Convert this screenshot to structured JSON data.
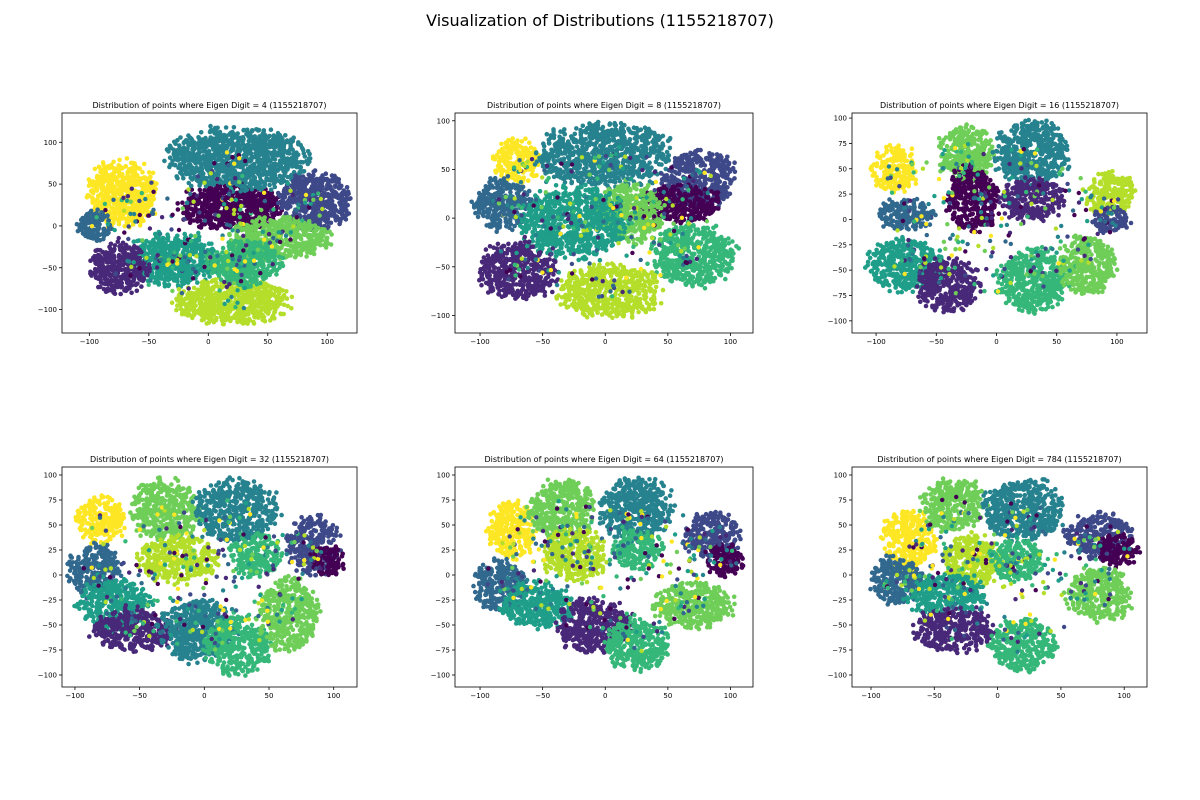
{
  "figure": {
    "suptitle": "Visualization of Distributions (1155218707)"
  },
  "palette": [
    "#440154",
    "#482878",
    "#3e4989",
    "#31688e",
    "#26828e",
    "#1f9e89",
    "#35b779",
    "#6ece58",
    "#b5de2b",
    "#fde725"
  ],
  "chart_data": [
    {
      "type": "scatter",
      "title": "Distribution of points where Eigen Digit = 4 (1155218707)",
      "xlim": [
        -123,
        125
      ],
      "ylim": [
        -128,
        135
      ],
      "xticks": [
        -100,
        -50,
        0,
        50,
        100
      ],
      "yticks": [
        -100,
        -50,
        0,
        50,
        100
      ],
      "grid": false,
      "clusters": [
        {
          "c": 9,
          "x": -72,
          "y": 38,
          "rx": 28,
          "ry": 38
        },
        {
          "c": 0,
          "x": 20,
          "y": 22,
          "rx": 42,
          "ry": 26
        },
        {
          "c": 4,
          "x": 25,
          "y": 80,
          "rx": 55,
          "ry": 35
        },
        {
          "c": 2,
          "x": 90,
          "y": 30,
          "rx": 28,
          "ry": 32
        },
        {
          "c": 7,
          "x": 60,
          "y": -15,
          "rx": 40,
          "ry": 24
        },
        {
          "c": 5,
          "x": -30,
          "y": -40,
          "rx": 35,
          "ry": 30
        },
        {
          "c": 1,
          "x": -75,
          "y": -50,
          "rx": 24,
          "ry": 28
        },
        {
          "c": 8,
          "x": 20,
          "y": -90,
          "rx": 45,
          "ry": 26
        },
        {
          "c": 3,
          "x": -95,
          "y": 0,
          "rx": 14,
          "ry": 18
        },
        {
          "c": 6,
          "x": 30,
          "y": -45,
          "rx": 30,
          "ry": 25
        }
      ]
    },
    {
      "type": "scatter",
      "title": "Distribution of points where Eigen Digit = 8 (1155218707)",
      "xlim": [
        -120,
        118
      ],
      "ylim": [
        -118,
        108
      ],
      "xticks": [
        -100,
        -50,
        0,
        50,
        100
      ],
      "yticks": [
        -100,
        -50,
        0,
        50,
        100
      ],
      "grid": false,
      "clusters": [
        {
          "c": 9,
          "x": -72,
          "y": 58,
          "rx": 18,
          "ry": 22
        },
        {
          "c": 3,
          "x": -82,
          "y": 15,
          "rx": 22,
          "ry": 25
        },
        {
          "c": 4,
          "x": 0,
          "y": 65,
          "rx": 50,
          "ry": 32
        },
        {
          "c": 2,
          "x": 75,
          "y": 40,
          "rx": 28,
          "ry": 28
        },
        {
          "c": 0,
          "x": 60,
          "y": 15,
          "rx": 30,
          "ry": 18
        },
        {
          "c": 7,
          "x": 20,
          "y": 5,
          "rx": 25,
          "ry": 30
        },
        {
          "c": 5,
          "x": -25,
          "y": -5,
          "rx": 40,
          "ry": 35
        },
        {
          "c": 6,
          "x": 70,
          "y": -38,
          "rx": 32,
          "ry": 30
        },
        {
          "c": 1,
          "x": -70,
          "y": -55,
          "rx": 30,
          "ry": 28
        },
        {
          "c": 8,
          "x": 5,
          "y": -75,
          "rx": 40,
          "ry": 26
        }
      ]
    },
    {
      "type": "scatter",
      "title": "Distribution of points where Eigen Digit = 16 (1155218707)",
      "xlim": [
        -120,
        125
      ],
      "ylim": [
        -112,
        105
      ],
      "xticks": [
        -100,
        -50,
        0,
        50,
        100
      ],
      "yticks": [
        -100,
        -75,
        -50,
        -25,
        0,
        25,
        50,
        75,
        100
      ],
      "grid": false,
      "clusters": [
        {
          "c": 9,
          "x": -85,
          "y": 50,
          "rx": 18,
          "ry": 22
        },
        {
          "c": 3,
          "x": -75,
          "y": 5,
          "rx": 22,
          "ry": 15
        },
        {
          "c": 7,
          "x": -25,
          "y": 65,
          "rx": 22,
          "ry": 26
        },
        {
          "c": 4,
          "x": 30,
          "y": 65,
          "rx": 30,
          "ry": 30
        },
        {
          "c": 0,
          "x": -20,
          "y": 20,
          "rx": 22,
          "ry": 30
        },
        {
          "c": 1,
          "x": 30,
          "y": 20,
          "rx": 25,
          "ry": 20
        },
        {
          "c": 8,
          "x": 95,
          "y": 25,
          "rx": 20,
          "ry": 20
        },
        {
          "c": 2,
          "x": 95,
          "y": 0,
          "rx": 15,
          "ry": 12
        },
        {
          "c": 5,
          "x": -75,
          "y": -45,
          "rx": 30,
          "ry": 25
        },
        {
          "c": 1,
          "x": -40,
          "y": -65,
          "rx": 25,
          "ry": 25
        },
        {
          "c": 6,
          "x": 30,
          "y": -60,
          "rx": 28,
          "ry": 30
        },
        {
          "c": 7,
          "x": 75,
          "y": -45,
          "rx": 22,
          "ry": 28
        }
      ]
    },
    {
      "type": "scatter",
      "title": "Distribution of points where Eigen Digit = 32 (1155218707)",
      "xlim": [
        -110,
        118
      ],
      "ylim": [
        -112,
        108
      ],
      "xticks": [
        -100,
        -50,
        0,
        50,
        100
      ],
      "yticks": [
        -100,
        -75,
        -50,
        -25,
        0,
        25,
        50,
        75,
        100
      ],
      "grid": false,
      "clusters": [
        {
          "c": 9,
          "x": -80,
          "y": 55,
          "rx": 18,
          "ry": 22
        },
        {
          "c": 3,
          "x": -85,
          "y": 5,
          "rx": 20,
          "ry": 25
        },
        {
          "c": 7,
          "x": -30,
          "y": 65,
          "rx": 25,
          "ry": 30
        },
        {
          "c": 4,
          "x": 25,
          "y": 65,
          "rx": 30,
          "ry": 30
        },
        {
          "c": 8,
          "x": -20,
          "y": 15,
          "rx": 30,
          "ry": 22
        },
        {
          "c": 2,
          "x": 85,
          "y": 30,
          "rx": 20,
          "ry": 28
        },
        {
          "c": 0,
          "x": 95,
          "y": 15,
          "rx": 12,
          "ry": 16
        },
        {
          "c": 5,
          "x": -70,
          "y": -30,
          "rx": 28,
          "ry": 25
        },
        {
          "c": 1,
          "x": -55,
          "y": -55,
          "rx": 30,
          "ry": 20
        },
        {
          "c": 4,
          "x": -5,
          "y": -55,
          "rx": 28,
          "ry": 30
        },
        {
          "c": 6,
          "x": 25,
          "y": -70,
          "rx": 25,
          "ry": 28
        },
        {
          "c": 7,
          "x": 65,
          "y": -40,
          "rx": 22,
          "ry": 35
        },
        {
          "c": 6,
          "x": 40,
          "y": 20,
          "rx": 20,
          "ry": 20
        }
      ]
    },
    {
      "type": "scatter",
      "title": "Distribution of points where Eigen Digit = 64 (1155218707)",
      "xlim": [
        -120,
        118
      ],
      "ylim": [
        -112,
        108
      ],
      "xticks": [
        -100,
        -50,
        0,
        50,
        100
      ],
      "yticks": [
        -100,
        -75,
        -50,
        -25,
        0,
        25,
        50,
        75,
        100
      ],
      "grid": false,
      "clusters": [
        {
          "c": 9,
          "x": -75,
          "y": 45,
          "rx": 18,
          "ry": 28
        },
        {
          "c": 3,
          "x": -85,
          "y": -10,
          "rx": 20,
          "ry": 25
        },
        {
          "c": 7,
          "x": -35,
          "y": 65,
          "rx": 25,
          "ry": 30
        },
        {
          "c": 4,
          "x": 25,
          "y": 65,
          "rx": 28,
          "ry": 30
        },
        {
          "c": 8,
          "x": -25,
          "y": 20,
          "rx": 25,
          "ry": 25
        },
        {
          "c": 2,
          "x": 85,
          "y": 40,
          "rx": 22,
          "ry": 22
        },
        {
          "c": 0,
          "x": 95,
          "y": 15,
          "rx": 15,
          "ry": 15
        },
        {
          "c": 5,
          "x": -55,
          "y": -30,
          "rx": 28,
          "ry": 22
        },
        {
          "c": 1,
          "x": -10,
          "y": -50,
          "rx": 30,
          "ry": 25
        },
        {
          "c": 6,
          "x": 25,
          "y": -70,
          "rx": 25,
          "ry": 25
        },
        {
          "c": 7,
          "x": 70,
          "y": -30,
          "rx": 30,
          "ry": 22
        },
        {
          "c": 6,
          "x": 25,
          "y": 25,
          "rx": 20,
          "ry": 18
        }
      ]
    },
    {
      "type": "scatter",
      "title": "Distribution of points where Eigen Digit = 784 (1155218707)",
      "xlim": [
        -115,
        118
      ],
      "ylim": [
        -112,
        108
      ],
      "xticks": [
        -100,
        -50,
        0,
        50,
        100
      ],
      "yticks": [
        -100,
        -75,
        -50,
        -25,
        0,
        25,
        50,
        75,
        100
      ],
      "grid": false,
      "clusters": [
        {
          "c": 9,
          "x": -70,
          "y": 35,
          "rx": 20,
          "ry": 28
        },
        {
          "c": 3,
          "x": -80,
          "y": -5,
          "rx": 20,
          "ry": 22
        },
        {
          "c": 7,
          "x": -35,
          "y": 70,
          "rx": 25,
          "ry": 25
        },
        {
          "c": 4,
          "x": 20,
          "y": 65,
          "rx": 30,
          "ry": 30
        },
        {
          "c": 8,
          "x": -20,
          "y": 15,
          "rx": 22,
          "ry": 25
        },
        {
          "c": 2,
          "x": 80,
          "y": 40,
          "rx": 25,
          "ry": 22
        },
        {
          "c": 0,
          "x": 95,
          "y": 25,
          "rx": 16,
          "ry": 16
        },
        {
          "c": 5,
          "x": -40,
          "y": -20,
          "rx": 30,
          "ry": 20
        },
        {
          "c": 1,
          "x": -35,
          "y": -55,
          "rx": 30,
          "ry": 20
        },
        {
          "c": 6,
          "x": 20,
          "y": -70,
          "rx": 25,
          "ry": 25
        },
        {
          "c": 7,
          "x": 80,
          "y": -20,
          "rx": 25,
          "ry": 25
        },
        {
          "c": 6,
          "x": 15,
          "y": 15,
          "rx": 20,
          "ry": 20
        }
      ]
    }
  ]
}
